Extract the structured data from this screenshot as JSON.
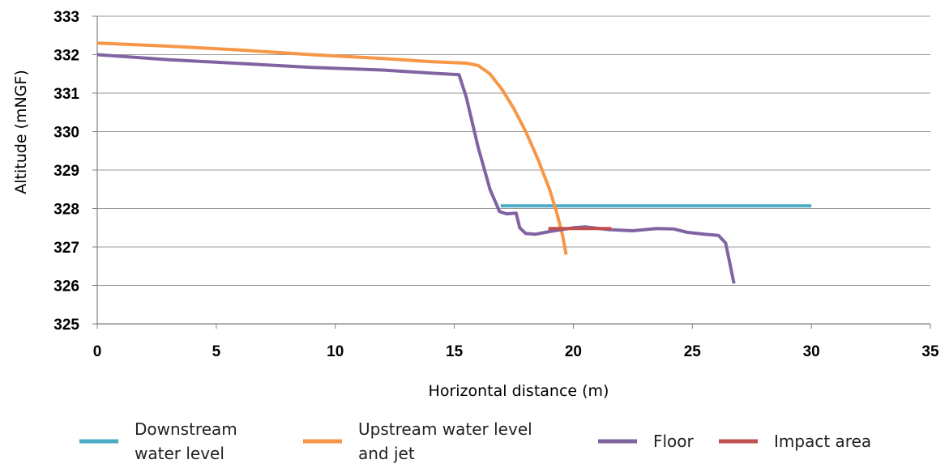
{
  "chart_data": {
    "type": "line",
    "title": "",
    "xlabel": "Horizontal distance (m)",
    "ylabel": "Altitude (mNGF)",
    "xlim": [
      0,
      35
    ],
    "ylim": [
      325,
      333
    ],
    "x_ticks": [
      "0",
      "5",
      "10",
      "15",
      "20",
      "25",
      "30",
      "35"
    ],
    "y_ticks": [
      "325",
      "326",
      "327",
      "328",
      "329",
      "330",
      "331",
      "332",
      "333"
    ],
    "grid": "horizontal",
    "legend_position": "bottom",
    "series": [
      {
        "name": [
          "Downstream",
          "water level"
        ],
        "color": "#4BACC6",
        "points": [
          [
            16.95,
            328.07
          ],
          [
            30.0,
            328.07
          ]
        ]
      },
      {
        "name": [
          "Upstream water level",
          "and jet"
        ],
        "color": "#F79646",
        "points": [
          [
            0,
            332.3
          ],
          [
            3,
            332.22
          ],
          [
            6,
            332.12
          ],
          [
            9,
            332.0
          ],
          [
            12,
            331.9
          ],
          [
            14,
            331.82
          ],
          [
            15.5,
            331.78
          ],
          [
            16.0,
            331.72
          ],
          [
            16.5,
            331.5
          ],
          [
            17.0,
            331.1
          ],
          [
            17.5,
            330.6
          ],
          [
            18.0,
            330.0
          ],
          [
            18.5,
            329.3
          ],
          [
            19.0,
            328.5
          ],
          [
            19.3,
            327.9
          ],
          [
            19.55,
            327.3
          ],
          [
            19.7,
            326.8
          ]
        ]
      },
      {
        "name": [
          "Floor"
        ],
        "color": "#8064A2",
        "points": [
          [
            0,
            332.0
          ],
          [
            3,
            331.87
          ],
          [
            6,
            331.77
          ],
          [
            9,
            331.67
          ],
          [
            12,
            331.6
          ],
          [
            14,
            331.52
          ],
          [
            15.2,
            331.48
          ],
          [
            15.5,
            330.9
          ],
          [
            16.0,
            329.6
          ],
          [
            16.5,
            328.5
          ],
          [
            16.9,
            327.92
          ],
          [
            17.2,
            327.86
          ],
          [
            17.6,
            327.88
          ],
          [
            17.75,
            327.5
          ],
          [
            18.0,
            327.35
          ],
          [
            18.4,
            327.33
          ],
          [
            19.0,
            327.4
          ],
          [
            20.0,
            327.5
          ],
          [
            20.5,
            327.52
          ],
          [
            21.5,
            327.45
          ],
          [
            22.5,
            327.42
          ],
          [
            23.5,
            327.48
          ],
          [
            24.2,
            327.47
          ],
          [
            24.8,
            327.38
          ],
          [
            25.5,
            327.33
          ],
          [
            26.1,
            327.3
          ],
          [
            26.4,
            327.1
          ],
          [
            26.6,
            326.5
          ],
          [
            26.75,
            326.05
          ]
        ]
      },
      {
        "name": [
          "Impact area"
        ],
        "color": "#C0504D",
        "points": [
          [
            18.95,
            327.48
          ],
          [
            21.6,
            327.48
          ]
        ]
      }
    ]
  }
}
